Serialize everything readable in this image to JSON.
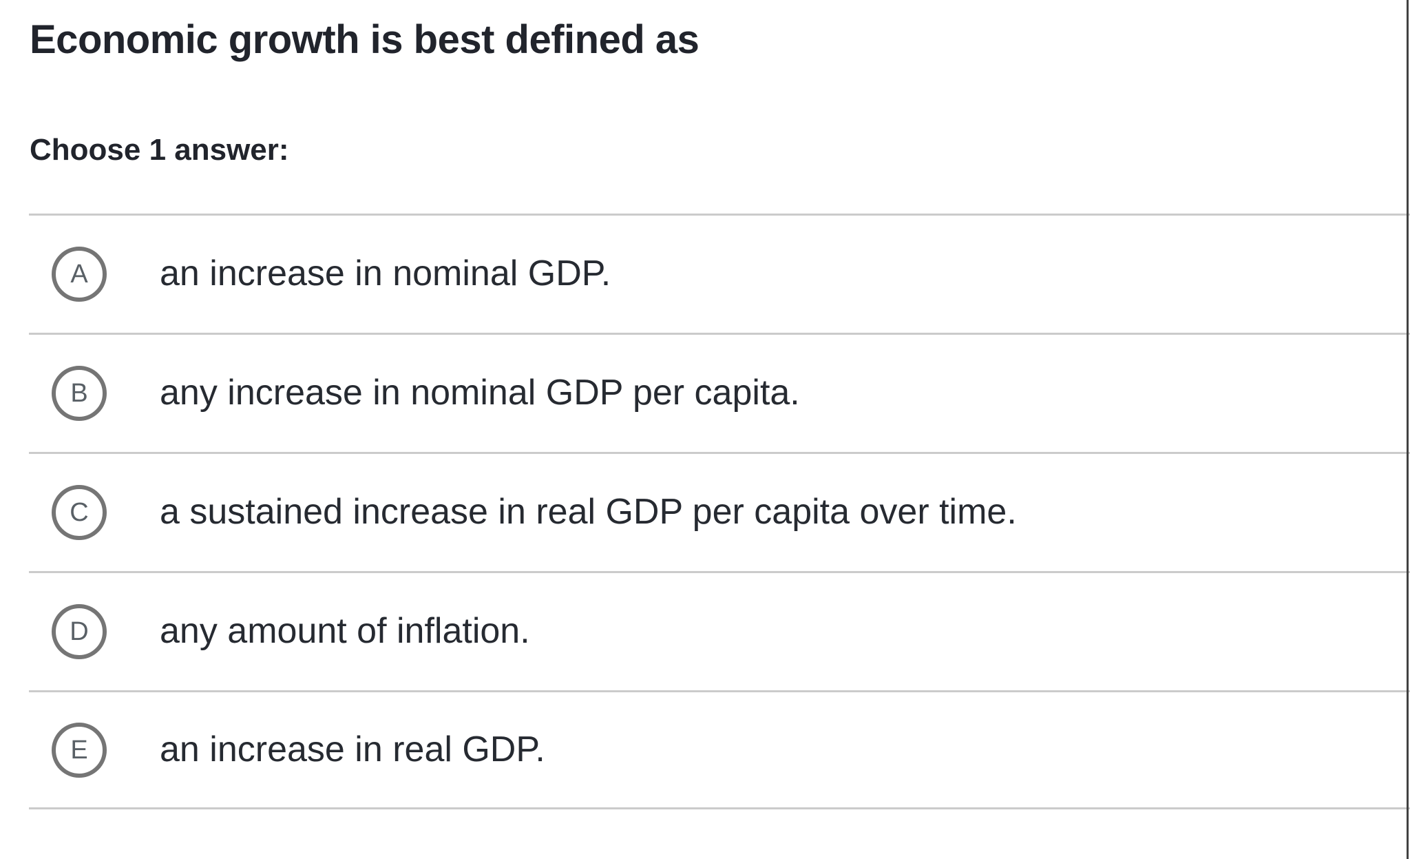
{
  "question": {
    "title": "Economic growth is best defined as",
    "prompt": "Choose 1 answer:"
  },
  "choices": [
    {
      "letter": "A",
      "text": "an increase in nominal GDP."
    },
    {
      "letter": "B",
      "text": "any increase in nominal GDP per capita."
    },
    {
      "letter": "C",
      "text": "a sustained increase in real GDP per capita over time."
    },
    {
      "letter": "D",
      "text": "any amount of inflation."
    },
    {
      "letter": "E",
      "text": "an increase in real GDP."
    }
  ],
  "colors": {
    "text_dark": "#21242c",
    "choice_text": "#262a31",
    "divider": "#cbcbcb",
    "badge_border": "#757575",
    "badge_letter": "#596066",
    "panel_edge_line": "#414141"
  }
}
